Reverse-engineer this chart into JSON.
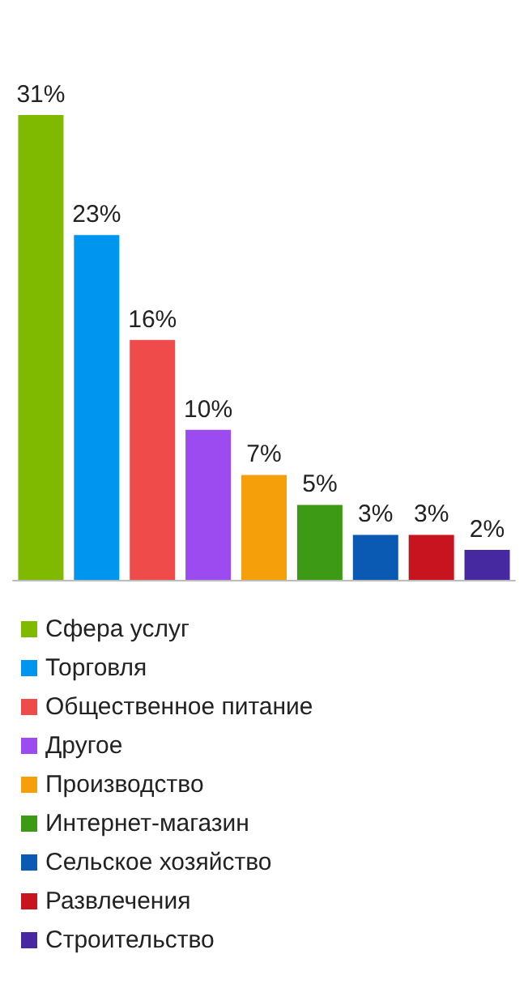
{
  "chart_data": {
    "type": "bar",
    "categories": [
      null,
      null,
      null,
      null,
      null,
      null,
      null,
      null,
      null
    ],
    "stacked": true,
    "legend": "bottom",
    "series": [
      {
        "name": "Сфера услуг",
        "color": "#7fba00",
        "values": [
          31,
          null,
          null,
          null,
          null,
          null,
          null,
          null,
          null
        ],
        "value_labels": [
          "31%",
          null,
          null,
          null,
          null,
          null,
          null,
          null,
          null
        ]
      },
      {
        "name": "Торговля",
        "color": "#0096f0",
        "values": [
          null,
          23,
          null,
          null,
          null,
          null,
          null,
          null,
          null
        ],
        "value_labels": [
          null,
          "23%",
          null,
          null,
          null,
          null,
          null,
          null,
          null
        ]
      },
      {
        "name": "Общественное питание",
        "color": "#f04b4b",
        "values": [
          null,
          null,
          16,
          null,
          null,
          null,
          null,
          null,
          null
        ],
        "value_labels": [
          null,
          null,
          "16%",
          null,
          null,
          null,
          null,
          null,
          null
        ]
      },
      {
        "name": "Другое",
        "color": "#9b4bf0",
        "values": [
          null,
          null,
          null,
          10,
          null,
          null,
          null,
          null,
          null
        ],
        "value_labels": [
          null,
          null,
          null,
          "10%",
          null,
          null,
          null,
          null,
          null
        ]
      },
      {
        "name": "Производство",
        "color": "#f5a00a",
        "values": [
          null,
          null,
          null,
          null,
          7,
          null,
          null,
          null,
          null
        ],
        "value_labels": [
          null,
          null,
          null,
          null,
          "7%",
          null,
          null,
          null,
          null
        ]
      },
      {
        "name": "Интернет-магазин",
        "color": "#3c9a14",
        "values": [
          null,
          null,
          null,
          null,
          null,
          5,
          null,
          null,
          null
        ],
        "value_labels": [
          null,
          null,
          null,
          null,
          null,
          "5%",
          null,
          null,
          null
        ]
      },
      {
        "name": "Сельское хозяйство",
        "color": "#0a5ab4",
        "values": [
          null,
          null,
          null,
          null,
          null,
          null,
          3,
          null,
          null
        ],
        "value_labels": [
          null,
          null,
          null,
          null,
          null,
          null,
          "3%",
          null,
          null
        ]
      },
      {
        "name": "Развлечения",
        "color": "#c8141e",
        "values": [
          null,
          null,
          null,
          null,
          null,
          null,
          null,
          3,
          null
        ],
        "value_labels": [
          null,
          null,
          null,
          null,
          null,
          null,
          null,
          "3%",
          null
        ]
      },
      {
        "name": "Строительство",
        "color": "#4628a0",
        "values": [
          null,
          null,
          null,
          null,
          null,
          null,
          null,
          null,
          2
        ],
        "value_labels": [
          null,
          null,
          null,
          null,
          null,
          null,
          null,
          null,
          "2%"
        ]
      }
    ]
  }
}
